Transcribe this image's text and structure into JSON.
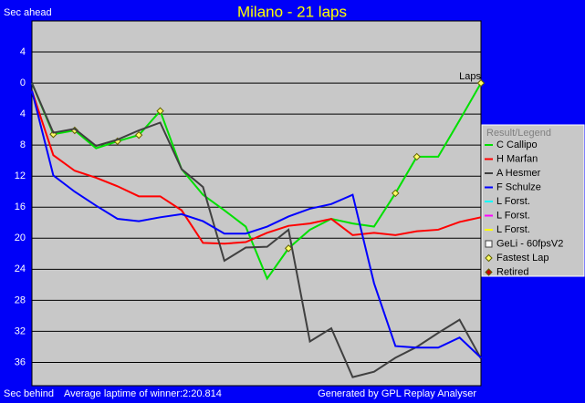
{
  "chart_data": {
    "type": "line",
    "title": "Milano - 21 laps",
    "y_label_top": "Sec ahead",
    "y_label_bottom": "Sec behind",
    "x_label": "Laps",
    "footer_left": "Average laptime of winner:2:20.814",
    "footer_right": "Generated by GPL Replay Analyser",
    "legend_title": "Result/Legend",
    "x": [
      0,
      1,
      2,
      3,
      4,
      5,
      6,
      7,
      8,
      9,
      10,
      11,
      12,
      13,
      14,
      15,
      16,
      17,
      18,
      19,
      20,
      21
    ],
    "xlim": [
      0,
      21
    ],
    "ylim": [
      -8,
      39
    ],
    "yticks": [
      {
        "value": -4,
        "label": "4"
      },
      0,
      4,
      8,
      12,
      16,
      20,
      24,
      28,
      32,
      36
    ],
    "grid": true,
    "series": [
      {
        "name": "C Callipo",
        "color": "#00e000",
        "values": [
          0,
          6.6,
          6.1,
          8.4,
          7.5,
          6.7,
          3.6,
          11.1,
          14.4,
          16.4,
          18.5,
          25.2,
          21.3,
          18.9,
          17.5,
          18.1,
          18.5,
          14.2,
          9.5,
          9.5,
          4.8,
          0
        ],
        "fastest_laps": [
          1,
          2,
          4,
          5,
          6,
          12,
          17,
          18,
          21
        ]
      },
      {
        "name": "H Marfan",
        "color": "#ff0000",
        "values": [
          1,
          9.3,
          11.3,
          12.2,
          13.3,
          14.6,
          14.6,
          16.4,
          20.6,
          20.7,
          20.5,
          19.3,
          18.4,
          18.1,
          17.5,
          19.6,
          19.3,
          19.6,
          19.1,
          18.9,
          17.9,
          17.3
        ]
      },
      {
        "name": "A Hesmer",
        "color": "#404040",
        "values": [
          0,
          6.4,
          5.9,
          8.1,
          7.3,
          6.1,
          5.1,
          11.1,
          13.4,
          22.9,
          21.2,
          21.1,
          18.9,
          33.3,
          31.6,
          37.9,
          37.2,
          35.4,
          34,
          32.2,
          30.5,
          35.5
        ]
      },
      {
        "name": "F Schulze",
        "color": "#0000ff",
        "values": [
          1,
          11.9,
          14,
          15.8,
          17.5,
          17.8,
          17.3,
          16.9,
          17.8,
          19.4,
          19.4,
          18.5,
          17.2,
          16.2,
          15.6,
          14.4,
          25.8,
          33.9,
          34.1,
          34.1,
          32.8,
          35.4
        ]
      }
    ],
    "legend_extra": [
      {
        "name": "L Forst.",
        "color": "#00ffff",
        "symbol": "line"
      },
      {
        "name": "L Forst.",
        "color": "#ff00ff",
        "symbol": "line"
      },
      {
        "name": "L Forst.",
        "color": "#ffff00",
        "symbol": "line"
      },
      {
        "name": "GeLi - 60fpsV2",
        "color": "#ffffff",
        "symbol": "square"
      },
      {
        "name": "Fastest Lap",
        "color": "#ffff66",
        "symbol": "diamond"
      },
      {
        "name": "Retired",
        "color": "#cc0000",
        "symbol": "diamond"
      }
    ]
  }
}
